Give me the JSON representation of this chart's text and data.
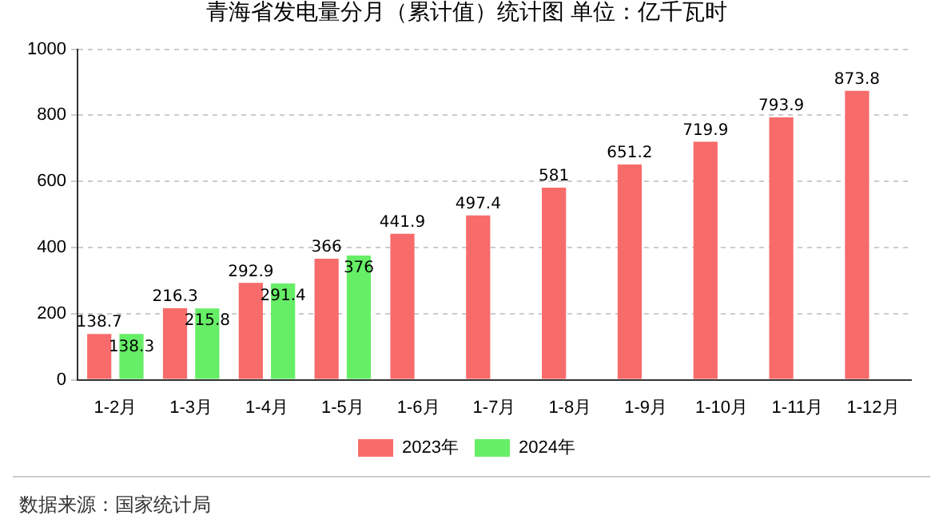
{
  "chart_data": {
    "type": "bar",
    "title": "青海省发电量分月（累计值）统计图 单位：亿千瓦时",
    "categories": [
      "1-2月",
      "1-3月",
      "1-4月",
      "1-5月",
      "1-6月",
      "1-7月",
      "1-8月",
      "1-9月",
      "1-10月",
      "1-11月",
      "1-12月"
    ],
    "series": [
      {
        "name": "2023年",
        "color": "#f86b6b",
        "values": [
          138.7,
          216.3,
          292.9,
          366,
          441.9,
          497.4,
          581,
          651.2,
          719.9,
          793.9,
          873.8
        ]
      },
      {
        "name": "2024年",
        "color": "#66ee66",
        "values": [
          138.3,
          215.8,
          291.4,
          376,
          null,
          null,
          null,
          null,
          null,
          null,
          null
        ]
      }
    ],
    "ylim": [
      0,
      1000
    ],
    "yticks": [
      0,
      200,
      400,
      600,
      800,
      1000
    ],
    "grid": "y",
    "legend": "bottom",
    "data_labels": true,
    "annotations": [
      "数据来源：国家统计局"
    ]
  }
}
